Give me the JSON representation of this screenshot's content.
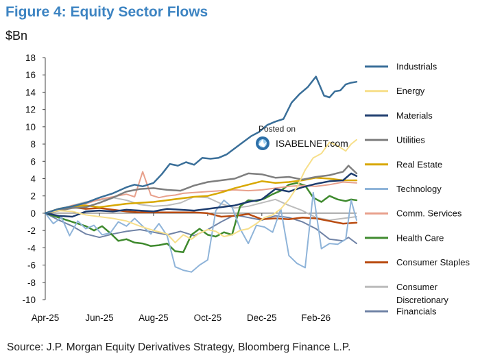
{
  "title": "Figure 4: Equity Sector Flows",
  "unit_label": "$Bn",
  "source": "Source: J.P. Morgan Equity Derivatives Strategy, Bloomberg Finance L.P.",
  "watermark": {
    "posted": "Posted on",
    "site": "ISABELNET.com"
  },
  "chart_data": {
    "type": "line",
    "title": "Figure 4: Equity Sector Flows",
    "ylabel": "$Bn",
    "xlabel": "",
    "ylim": [
      -10,
      18
    ],
    "yticks": [
      18,
      16,
      14,
      12,
      10,
      8,
      6,
      4,
      2,
      0,
      -2,
      -4,
      -6,
      -8,
      -10
    ],
    "xlim": [
      0,
      11.5
    ],
    "x_tick_labels": [
      "Apr-25",
      "Jun-25",
      "Aug-25",
      "Oct-25",
      "Dec-25",
      "Feb-26"
    ],
    "x_tick_positions": [
      0,
      2,
      4,
      6,
      8,
      10
    ],
    "grid": false,
    "legend_position": "right",
    "series": [
      {
        "name": "Industrials",
        "color": "#3a6f99",
        "width": 2.5,
        "x": [
          0,
          0.5,
          1,
          1.5,
          2,
          2.5,
          3,
          3.3,
          3.6,
          4,
          4.3,
          4.6,
          4.9,
          5.2,
          5.5,
          5.8,
          6.1,
          6.4,
          6.7,
          7,
          7.3,
          7.6,
          7.9,
          8.2,
          8.5,
          8.8,
          9.1,
          9.4,
          9.7,
          10,
          10.3,
          10.5,
          10.7,
          10.9,
          11.1,
          11.3,
          11.5
        ],
        "y": [
          0,
          0.5,
          0.8,
          1.2,
          1.8,
          2.3,
          3,
          3.3,
          3.1,
          3.5,
          4.5,
          5.7,
          5.5,
          5.9,
          5.6,
          6.4,
          6.3,
          6.4,
          6.8,
          7.5,
          8.2,
          8.9,
          9.4,
          10.2,
          10.6,
          10.9,
          12.8,
          13.8,
          14.6,
          15.8,
          13.6,
          13.4,
          14.1,
          14.2,
          14.9,
          15.1,
          15.2
        ]
      },
      {
        "name": "Energy",
        "color": "#f7df8a",
        "width": 2,
        "x": [
          0,
          0.5,
          1,
          1.5,
          2,
          2.5,
          3,
          3.5,
          4,
          4.5,
          4.8,
          5.1,
          5.4,
          5.7,
          6,
          6.3,
          6.6,
          6.9,
          7.2,
          7.5,
          7.8,
          8.1,
          8.4,
          8.7,
          9,
          9.3,
          9.6,
          9.9,
          10.2,
          10.5,
          10.8,
          11.1,
          11.3,
          11.5
        ],
        "y": [
          0,
          0.3,
          0.2,
          -0.2,
          -0.4,
          -0.6,
          -0.9,
          -1.5,
          -2,
          -2.4,
          -3.4,
          -2.5,
          -3,
          -2.3,
          -1.9,
          -2.1,
          -2.7,
          -2.5,
          -2,
          -1.8,
          -1.2,
          -0.5,
          -0.2,
          0.5,
          1.6,
          3,
          5,
          6.4,
          6.9,
          8.2,
          7.8,
          7.2,
          8,
          8.5
        ]
      },
      {
        "name": "Materials",
        "color": "#1d3c6e",
        "width": 2.5,
        "x": [
          0,
          0.5,
          1,
          1.5,
          2,
          2.5,
          3,
          3.5,
          4,
          4.5,
          5,
          5.5,
          6,
          6.5,
          7,
          7.5,
          8,
          8.5,
          9,
          9.5,
          10,
          10.5,
          11,
          11.3,
          11.5
        ],
        "y": [
          0,
          -0.3,
          -0.4,
          0.2,
          0.3,
          0.2,
          0.4,
          0.3,
          0.2,
          0.5,
          0.4,
          0.3,
          0.5,
          0.7,
          0.9,
          1.3,
          1.6,
          2.8,
          2.5,
          3,
          3.4,
          3.7,
          3.8,
          4.6,
          4.3
        ]
      },
      {
        "name": "Utilities",
        "color": "#7e7e7e",
        "width": 2.5,
        "x": [
          0,
          0.5,
          1,
          1.5,
          2,
          2.5,
          3,
          3.5,
          4,
          4.5,
          5,
          5.5,
          6,
          6.5,
          7,
          7.5,
          8,
          8.5,
          9,
          9.5,
          10,
          10.5,
          11,
          11.2,
          11.5
        ],
        "y": [
          0,
          0.3,
          0.6,
          0.7,
          1.2,
          1.8,
          2.5,
          2.8,
          2.9,
          2.7,
          2.6,
          3.2,
          3.6,
          3.8,
          4,
          4.6,
          4.5,
          4.1,
          4.2,
          3.9,
          4.2,
          4.4,
          4.8,
          5.5,
          4.6
        ]
      },
      {
        "name": "Real Estate",
        "color": "#d8a800",
        "width": 2.5,
        "x": [
          0,
          0.5,
          1,
          1.5,
          2,
          2.5,
          3,
          3.5,
          4,
          4.5,
          5,
          5.5,
          6,
          6.5,
          7,
          7.5,
          8,
          8.5,
          9,
          9.5,
          10,
          10.5,
          11,
          11.5
        ],
        "y": [
          0,
          0.5,
          0.8,
          0.9,
          0.7,
          0.9,
          1.1,
          1.2,
          1.3,
          1.5,
          1.7,
          1.9,
          2,
          2.4,
          2.9,
          3.3,
          3.7,
          3.5,
          3.6,
          3.8,
          4.1,
          4,
          3.8,
          3.8
        ]
      },
      {
        "name": "Technology",
        "color": "#8fb4d9",
        "width": 2,
        "x": [
          0,
          0.3,
          0.6,
          0.9,
          1.2,
          1.5,
          1.8,
          2.1,
          2.4,
          2.7,
          3,
          3.3,
          3.6,
          3.9,
          4.2,
          4.5,
          4.8,
          5.1,
          5.4,
          5.7,
          6,
          6.3,
          6.6,
          6.9,
          7.2,
          7.5,
          7.8,
          8.1,
          8.4,
          8.7,
          9,
          9.3,
          9.6,
          9.9,
          10.2,
          10.5,
          10.8,
          11.1,
          11.3,
          11.5
        ],
        "y": [
          0,
          -1.2,
          -0.5,
          -2.6,
          -0.9,
          -1.8,
          -1.4,
          -2.5,
          -2.3,
          -1,
          -1.5,
          -0.6,
          -1.5,
          -2.4,
          -1.2,
          -2.6,
          -6.2,
          -6.6,
          -6.8,
          -6,
          -5.4,
          0.3,
          1.5,
          0.7,
          -1.8,
          -3.5,
          -1.4,
          -1.6,
          -2.2,
          0.5,
          -4.9,
          -5.8,
          -6.3,
          2.4,
          -4.1,
          -3.5,
          -3.6,
          -3,
          1.5,
          -0.8
        ]
      },
      {
        "name": "Comm. Services",
        "color": "#e8a08c",
        "width": 2,
        "x": [
          0,
          0.5,
          1,
          1.5,
          2,
          2.5,
          3,
          3.3,
          3.6,
          3.9,
          4.2,
          4.5,
          4.8,
          5.1,
          5.5,
          6,
          6.5,
          7,
          7.5,
          8,
          8.5,
          9,
          9.5,
          10,
          10.5,
          11,
          11.5
        ],
        "y": [
          0,
          0.4,
          0.9,
          1.1,
          1.6,
          1.9,
          2.2,
          1.9,
          4.8,
          2.1,
          1.8,
          2,
          2.1,
          2.3,
          2.4,
          2.5,
          2.6,
          2.7,
          2.6,
          2.7,
          2.9,
          3.1,
          3.2,
          3.1,
          3.3,
          3.6,
          3.5
        ]
      },
      {
        "name": "Health Care",
        "color": "#3f8a2e",
        "width": 2.5,
        "x": [
          0,
          0.3,
          0.6,
          0.9,
          1.2,
          1.5,
          1.8,
          2.1,
          2.4,
          2.7,
          3,
          3.3,
          3.6,
          3.9,
          4.2,
          4.5,
          4.8,
          5.1,
          5.4,
          5.7,
          6,
          6.3,
          6.6,
          6.9,
          7.2,
          7.5,
          7.8,
          8.1,
          8.4,
          8.7,
          9,
          9.3,
          9.6,
          9.9,
          10.2,
          10.5,
          10.8,
          11.1,
          11.3,
          11.5
        ],
        "y": [
          0,
          -0.3,
          -0.6,
          -0.9,
          -1.2,
          -1.5,
          -2,
          -1.5,
          -2.3,
          -3.2,
          -3,
          -3.4,
          -3.5,
          -3.8,
          -3.7,
          -3.5,
          -4.4,
          -4.5,
          -2.5,
          -1.8,
          -2.5,
          -2.7,
          -2.2,
          -2.5,
          0.8,
          1.5,
          1.4,
          1.7,
          2.2,
          2.6,
          3.3,
          3.5,
          3.2,
          1.8,
          1.3,
          2,
          1.6,
          1.4,
          1.6,
          1.5
        ]
      },
      {
        "name": "Consumer Staples",
        "color": "#b94b10",
        "width": 2.5,
        "x": [
          0,
          0.5,
          1,
          1.5,
          2,
          2.5,
          3,
          3.5,
          4,
          4.5,
          5,
          5.5,
          6,
          6.5,
          7,
          7.5,
          8,
          8.5,
          9,
          9.5,
          10,
          10.5,
          11,
          11.5
        ],
        "y": [
          0,
          0.5,
          0.7,
          0.5,
          0.6,
          0.4,
          0.2,
          0.1,
          0.1,
          0.1,
          0.1,
          0.1,
          0,
          -0.4,
          -0.3,
          -0.1,
          -0.7,
          -0.6,
          -0.7,
          -0.5,
          -0.6,
          -0.9,
          -1.2,
          -1.1
        ]
      },
      {
        "name": "Consumer Discretionary",
        "color": "#bcbcbc",
        "width": 2,
        "x": [
          0,
          0.5,
          1,
          1.5,
          2,
          2.5,
          3,
          3.5,
          4,
          4.5,
          5,
          5.5,
          6,
          6.5,
          7,
          7.5,
          8,
          8.5,
          9,
          9.5,
          10,
          10.5,
          11,
          11.5
        ],
        "y": [
          0,
          0.4,
          0.9,
          1.3,
          1.5,
          1.8,
          1.5,
          1,
          0.8,
          0.9,
          1.2,
          1.9,
          1.8,
          1.1,
          0.6,
          0.8,
          1.2,
          1.6,
          0.9,
          0.3,
          -0.5,
          -0.8,
          -0.6,
          -0.4
        ]
      },
      {
        "name": "Financials",
        "color": "#7083a6",
        "width": 2,
        "x": [
          0,
          0.5,
          1,
          1.5,
          2,
          2.5,
          3,
          3.5,
          4,
          4.5,
          5,
          5.5,
          6,
          6.5,
          7,
          7.5,
          8,
          8.5,
          9,
          9.5,
          10,
          10.5,
          11,
          11.2,
          11.5
        ],
        "y": [
          0,
          -0.8,
          -1.5,
          -2.4,
          -2.8,
          -2.4,
          -2.1,
          -1.9,
          -2.2,
          -2.5,
          -2.1,
          -2.6,
          -1.9,
          -1,
          -0.2,
          -0.5,
          -0.8,
          -0.3,
          -0.5,
          -1,
          -1.8,
          -3,
          -3.2,
          -2.8,
          -3.5
        ]
      }
    ]
  }
}
